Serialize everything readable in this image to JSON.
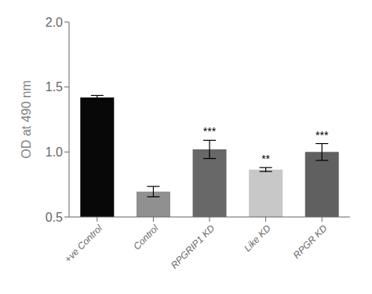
{
  "chart_data": {
    "type": "bar",
    "categories": [
      "+ve Control",
      "Control",
      "RPGRIP1 KD",
      "Like KD",
      "RPGR KD"
    ],
    "values": [
      1.42,
      0.695,
      1.02,
      0.865,
      1.0
    ],
    "errors": [
      0.015,
      0.04,
      0.07,
      0.015,
      0.065
    ],
    "annotations": [
      null,
      null,
      "***",
      "**",
      "***"
    ],
    "colors": [
      "#080808",
      "#909090",
      "#686868",
      "#c8c8c8",
      "#606060"
    ],
    "ylabel": "OD at 490 nm",
    "ylim": [
      0.5,
      2.0
    ],
    "yticks": [
      0.5,
      {
        "value": 1.0,
        "label": "1.0"
      },
      1.5,
      {
        "value": 2.0,
        "label": "2.0"
      }
    ],
    "grid": false
  }
}
